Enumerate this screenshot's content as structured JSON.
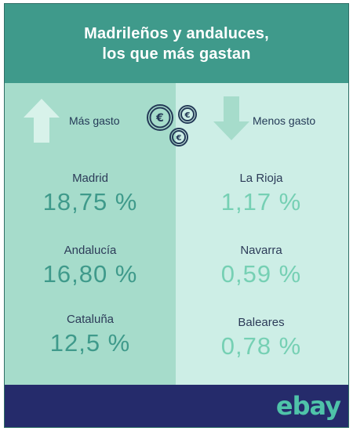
{
  "title": {
    "line1": "Madrileños y andaluces,",
    "line2": "los que más gastan"
  },
  "more_spending": {
    "label": "Más gasto",
    "icon": "arrow-up-icon",
    "items": [
      {
        "region": "Madrid",
        "value": "18,75 %"
      },
      {
        "region": "Andalucía",
        "value": "16,80 %"
      },
      {
        "region": "Cataluña",
        "value": "12,5 %"
      }
    ]
  },
  "less_spending": {
    "label": "Menos gasto",
    "icon": "arrow-down-icon",
    "items": [
      {
        "region": "La Rioja",
        "value": "1,17 %"
      },
      {
        "region": "Navarra",
        "value": "0,59 %"
      },
      {
        "region": "Baleares",
        "value": "0,78 %"
      }
    ]
  },
  "brand": {
    "logo": "ebay"
  },
  "colors": {
    "header": "#3f9a8b",
    "left_panel": "#a6dccb",
    "right_panel": "#cdeee6",
    "footer": "#252b6b",
    "accent": "#4fc3a9"
  }
}
